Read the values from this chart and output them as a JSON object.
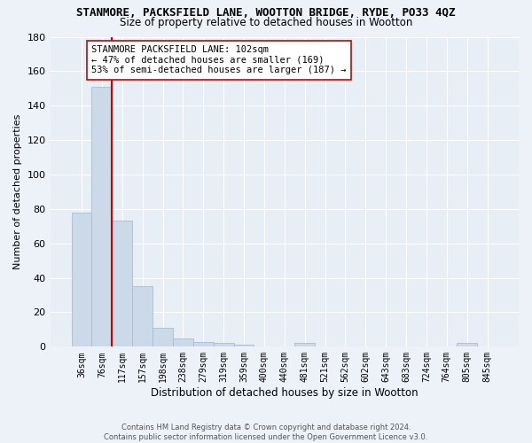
{
  "title": "STANMORE, PACKSFIELD LANE, WOOTTON BRIDGE, RYDE, PO33 4QZ",
  "subtitle": "Size of property relative to detached houses in Wootton",
  "xlabel": "Distribution of detached houses by size in Wootton",
  "ylabel": "Number of detached properties",
  "bar_color": "#ccd9e8",
  "bar_edge_color": "#a8bdd0",
  "background_color": "#e8eef6",
  "grid_color": "#ffffff",
  "categories": [
    "36sqm",
    "76sqm",
    "117sqm",
    "157sqm",
    "198sqm",
    "238sqm",
    "279sqm",
    "319sqm",
    "359sqm",
    "400sqm",
    "440sqm",
    "481sqm",
    "521sqm",
    "562sqm",
    "602sqm",
    "643sqm",
    "683sqm",
    "724sqm",
    "764sqm",
    "805sqm",
    "845sqm"
  ],
  "values": [
    78,
    151,
    73,
    35,
    11,
    5,
    3,
    2,
    1,
    0,
    0,
    2,
    0,
    0,
    0,
    0,
    0,
    0,
    0,
    2,
    0
  ],
  "ylim": [
    0,
    180
  ],
  "yticks": [
    0,
    20,
    40,
    60,
    80,
    100,
    120,
    140,
    160,
    180
  ],
  "property_line_idx": 1.5,
  "property_line_color": "#cc0000",
  "annotation_text": "STANMORE PACKSFIELD LANE: 102sqm\n← 47% of detached houses are smaller (169)\n53% of semi-detached houses are larger (187) →",
  "annotation_box_color": "#ffffff",
  "annotation_box_edge": "#cc0000",
  "footer_full": "Contains HM Land Registry data © Crown copyright and database right 2024.\nContains public sector information licensed under the Open Government Licence v3.0."
}
